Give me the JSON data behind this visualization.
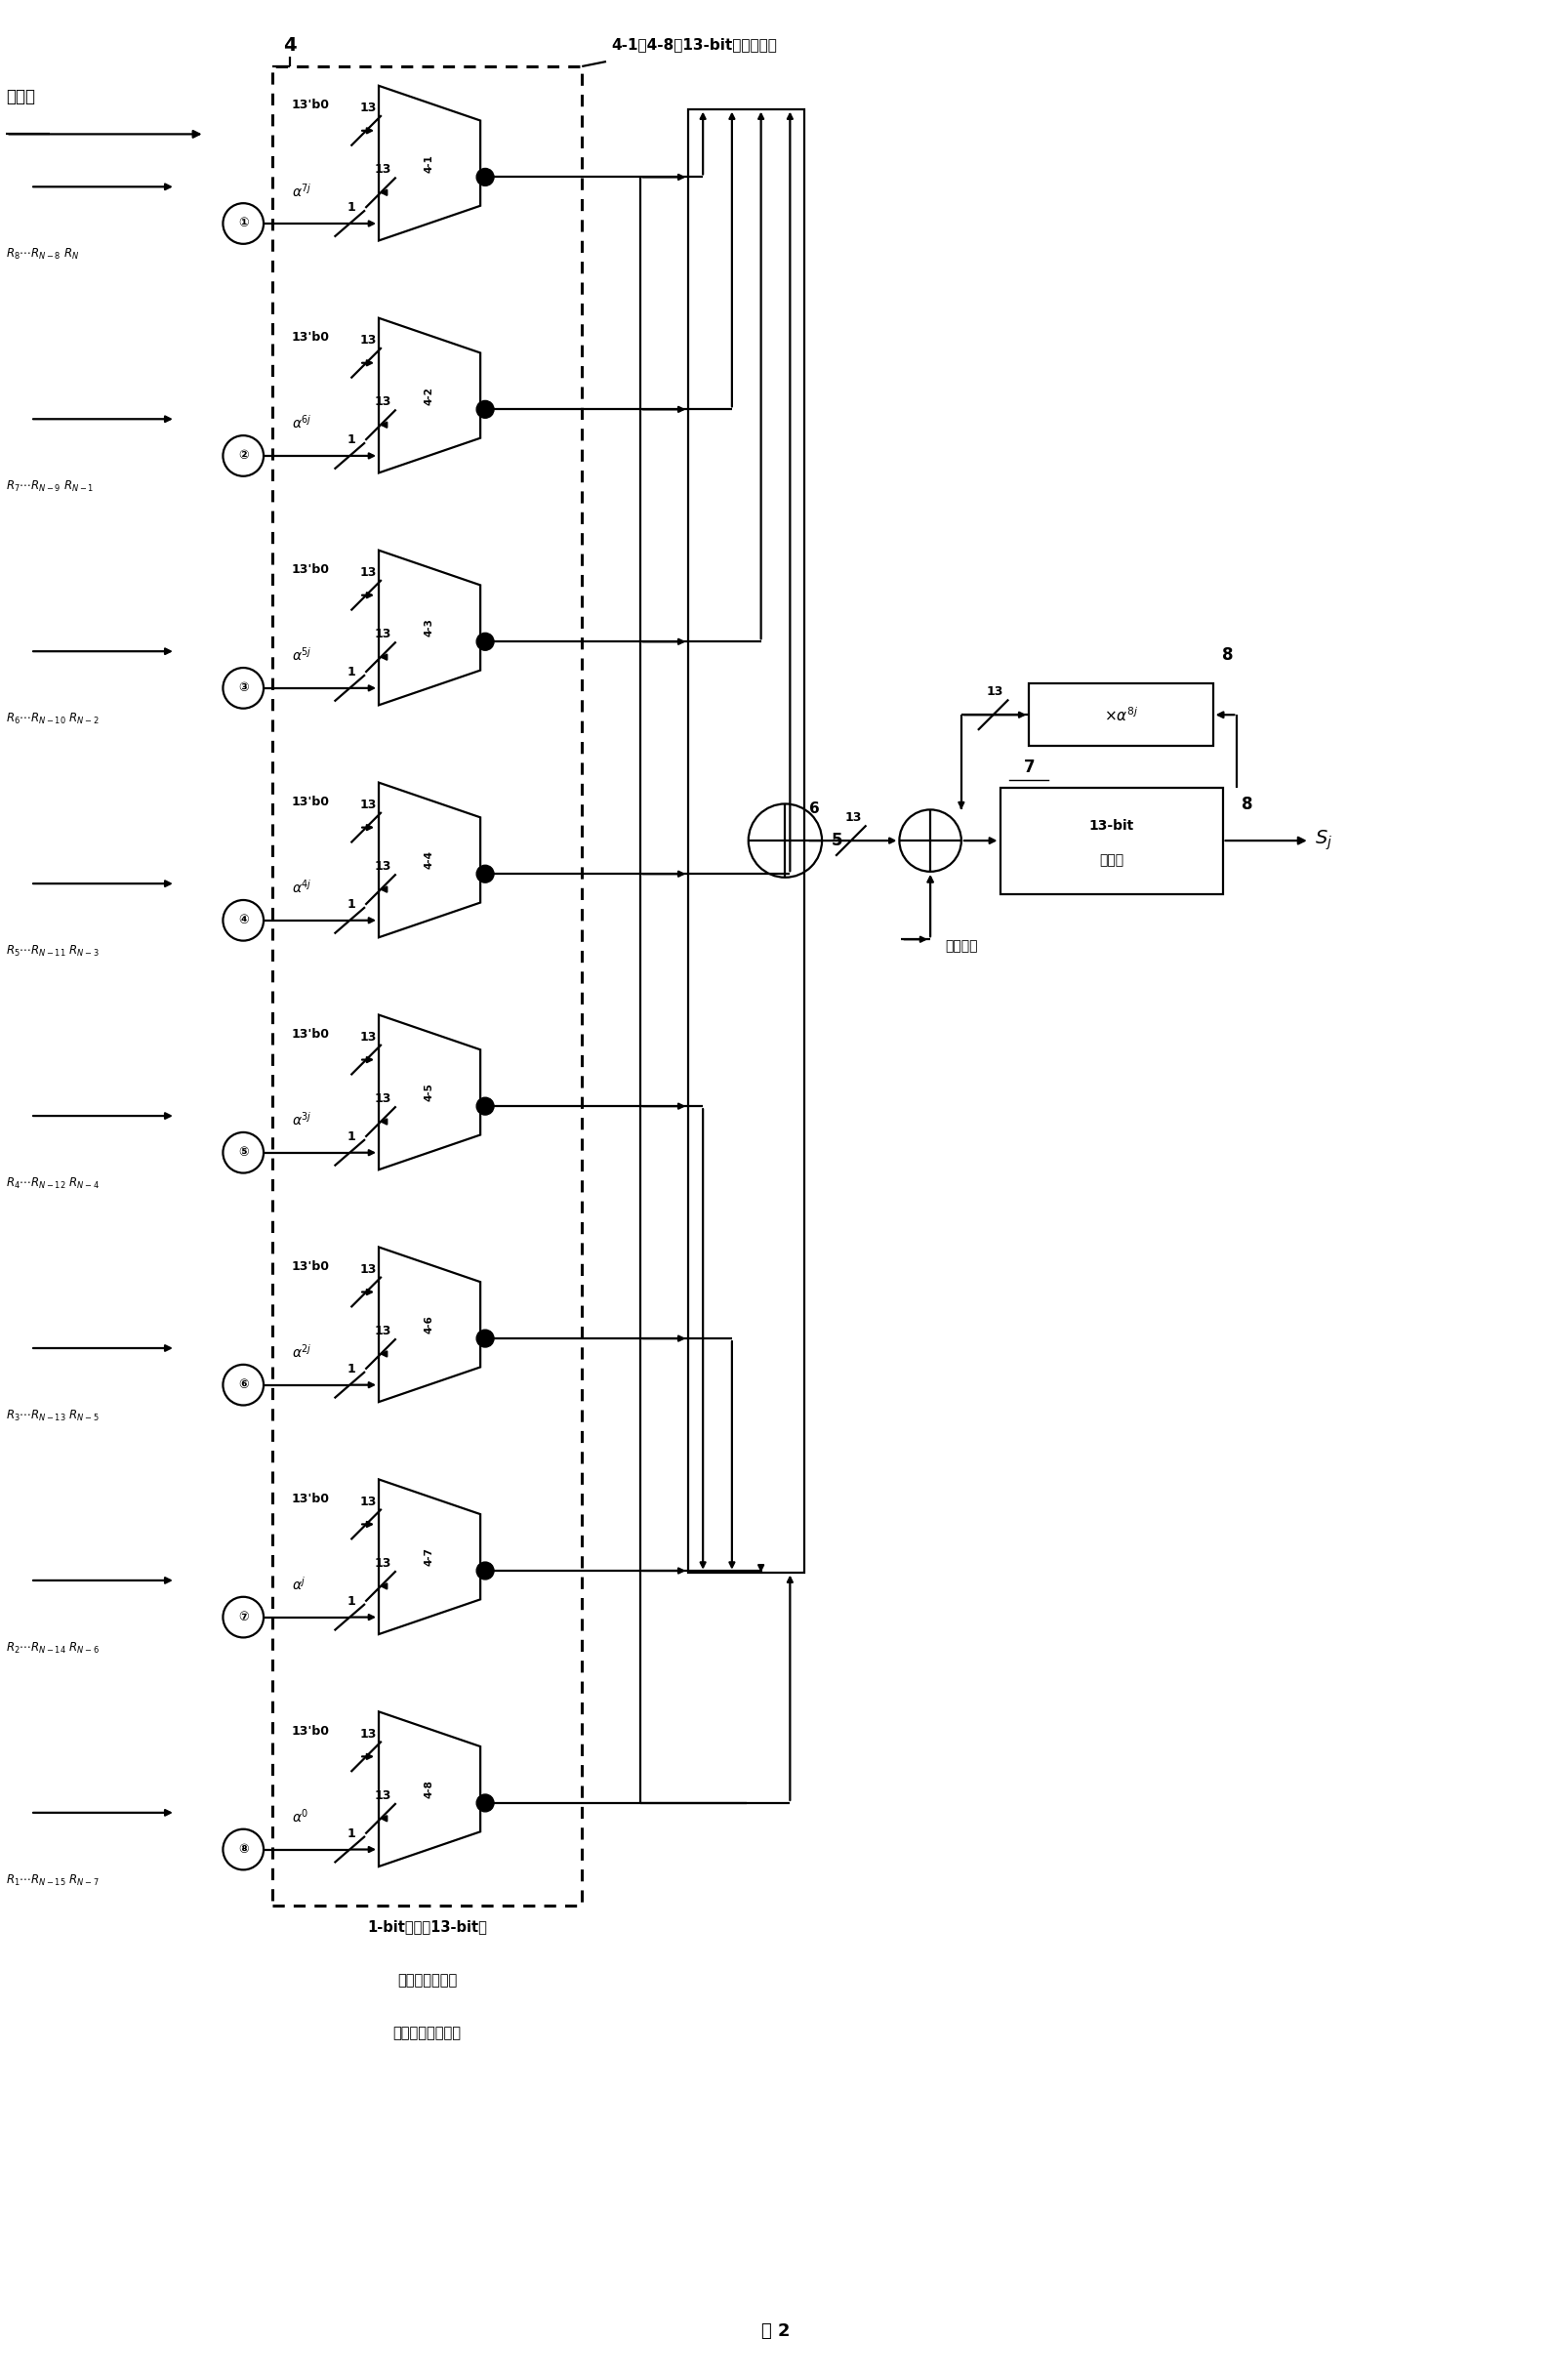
{
  "title": "图 2",
  "fig_width": 15.89,
  "fig_height": 24.38,
  "bg_color": "#ffffff",
  "mux_label": "4-1至4-8为13-bit双路选通器",
  "bit_stream_label": "比特流",
  "bottom_line1": "1-bit变量与13-bit常",
  "bottom_line2": "量有限域乘法的",
  "bottom_line3": "双路选通实现结构",
  "alpha_labels": [
    "7j",
    "6j",
    "5j",
    "4j",
    "3j",
    "2j",
    "j",
    "0"
  ],
  "mux_ids": [
    "4-1",
    "4-2",
    "4-3",
    "4-4",
    "4-5",
    "4-6",
    "4-7",
    "4-8"
  ],
  "circle_nums": [
    "①",
    "②",
    "③",
    "④",
    "⑤",
    "⑥",
    "⑦",
    "⑧"
  ],
  "r_labels_top": [
    "$R_8$$\\cdots$$R_{N-8}$ $R_N$",
    "$R_7$$\\cdots$$R_{N-9}$ $R_{N-1}$",
    "$R_6$$\\cdots$$R_{N-10}$ $R_{N-2}$",
    "$R_5$$\\cdots$$R_{N-11}$ $R_{N-3}$",
    "$R_4$$\\cdots$$R_{N-12}$ $R_{N-4}$",
    "$R_3$$\\cdots$$R_{N-13}$ $R_{N-5}$",
    "$R_2$$\\cdots$$R_{N-14}$ $R_{N-6}$",
    "$R_1$$\\cdots$$R_{N-15}$ $R_{N-7}$"
  ]
}
